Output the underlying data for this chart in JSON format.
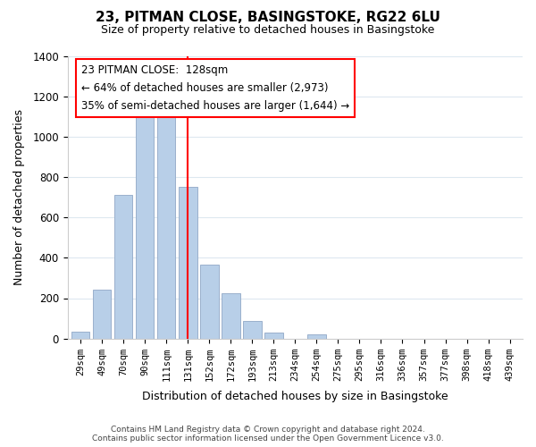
{
  "title_line1": "23, PITMAN CLOSE, BASINGSTOKE, RG22 6LU",
  "title_line2": "Size of property relative to detached houses in Basingstoke",
  "xlabel": "Distribution of detached houses by size in Basingstoke",
  "ylabel": "Number of detached properties",
  "bar_labels": [
    "29sqm",
    "49sqm",
    "70sqm",
    "90sqm",
    "111sqm",
    "131sqm",
    "152sqm",
    "172sqm",
    "193sqm",
    "213sqm",
    "234sqm",
    "254sqm",
    "275sqm",
    "295sqm",
    "316sqm",
    "336sqm",
    "357sqm",
    "377sqm",
    "398sqm",
    "418sqm",
    "439sqm"
  ],
  "bar_heights": [
    35,
    240,
    710,
    1095,
    1100,
    750,
    365,
    225,
    88,
    30,
    0,
    20,
    0,
    0,
    0,
    0,
    0,
    0,
    0,
    0,
    0
  ],
  "bar_color": "#b8cfe8",
  "bar_edge_color": "#9ab0cc",
  "red_line_x": 5.0,
  "annotation_title": "23 PITMAN CLOSE:  128sqm",
  "annotation_line1": "← 64% of detached houses are smaller (2,973)",
  "annotation_line2": "35% of semi-detached houses are larger (1,644) →",
  "ylim": [
    0,
    1400
  ],
  "yticks": [
    0,
    200,
    400,
    600,
    800,
    1000,
    1200,
    1400
  ],
  "footer_line1": "Contains HM Land Registry data © Crown copyright and database right 2024.",
  "footer_line2": "Contains public sector information licensed under the Open Government Licence v3.0.",
  "background_color": "#ffffff",
  "grid_color": "#dde8f0"
}
